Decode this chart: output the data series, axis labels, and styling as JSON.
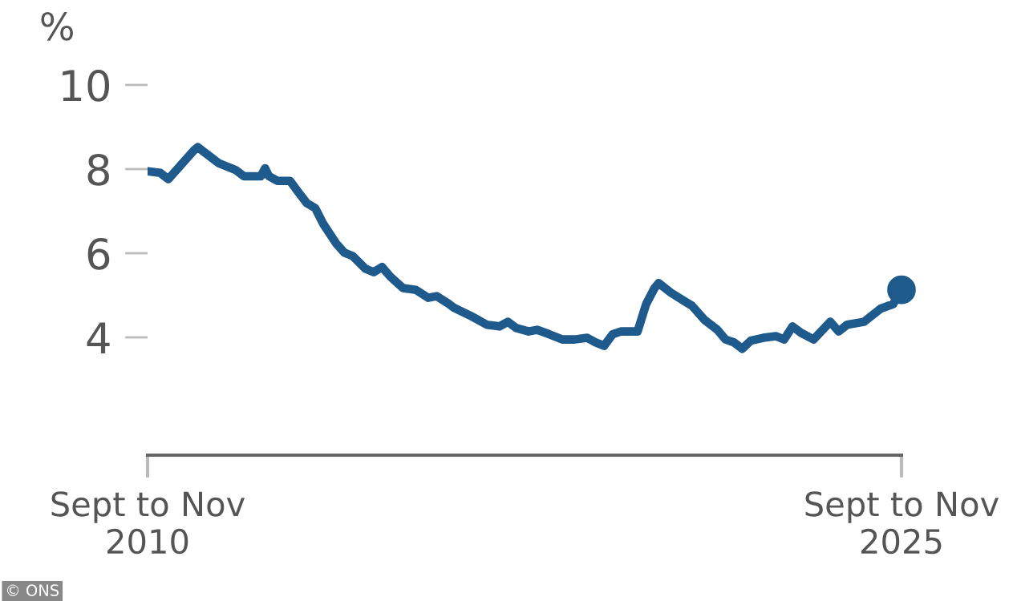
{
  "chart_data": {
    "type": "line",
    "ylabel": "%",
    "annotations": [
      "© ONS"
    ],
    "x": [
      "2010-10",
      "2011-01",
      "2011-03",
      "2011-06",
      "2011-09",
      "2011-10",
      "2012-01",
      "2012-03",
      "2012-07",
      "2012-09",
      "2013-01",
      "2013-02",
      "2013-03",
      "2013-05",
      "2013-08",
      "2013-10",
      "2013-12",
      "2014-02",
      "2014-04",
      "2014-07",
      "2014-09",
      "2014-11",
      "2015-02",
      "2015-04",
      "2015-06",
      "2015-08",
      "2015-11",
      "2016-02",
      "2016-05",
      "2016-07",
      "2016-10",
      "2016-11",
      "2017-03",
      "2017-05",
      "2017-07",
      "2017-10",
      "2017-12",
      "2018-02",
      "2018-05",
      "2018-07",
      "2018-10",
      "2019-01",
      "2019-04",
      "2019-07",
      "2019-09",
      "2019-11",
      "2020-01",
      "2020-03",
      "2020-07",
      "2020-09",
      "2020-11",
      "2020-12",
      "2021-03",
      "2021-06",
      "2021-08",
      "2021-11",
      "2022-02",
      "2022-04",
      "2022-06",
      "2022-08",
      "2022-10",
      "2023-01",
      "2023-04",
      "2023-06",
      "2023-08",
      "2023-10",
      "2024-01",
      "2024-05",
      "2024-07",
      "2024-09",
      "2025-01",
      "2025-05",
      "2025-08",
      "2025-10"
    ],
    "series": [
      {
        "color": "#1f5a8c",
        "values": [
          7.95,
          7.91,
          7.76,
          8.1,
          8.44,
          8.52,
          8.29,
          8.14,
          7.98,
          7.83,
          7.83,
          8.02,
          7.83,
          7.72,
          7.72,
          7.45,
          7.19,
          7.07,
          6.69,
          6.24,
          6.01,
          5.93,
          5.63,
          5.55,
          5.67,
          5.44,
          5.17,
          5.13,
          4.94,
          4.98,
          4.79,
          4.71,
          4.52,
          4.41,
          4.3,
          4.26,
          4.37,
          4.22,
          4.14,
          4.18,
          4.07,
          3.95,
          3.95,
          3.99,
          3.88,
          3.8,
          4.07,
          4.14,
          4.14,
          4.79,
          5.17,
          5.29,
          5.06,
          4.87,
          4.75,
          4.41,
          4.18,
          3.95,
          3.88,
          3.73,
          3.92,
          3.99,
          4.03,
          3.95,
          4.26,
          4.11,
          3.95,
          4.37,
          4.14,
          4.3,
          4.37,
          4.68,
          4.79,
          5.13
        ]
      },
      {
        "type": "scatter",
        "color": "#1f5a8c",
        "x": [
          "2025-10"
        ],
        "values": [
          5.13
        ]
      }
    ],
    "xlim": [
      "2010-10",
      "2025-10"
    ],
    "xticks": [
      {
        "value": "2010-10",
        "label": "Sept to Nov\n2010"
      },
      {
        "value": "2025-10",
        "label": "Sept to Nov\n2025"
      }
    ],
    "ylim": [
      1.2,
      10
    ],
    "yticks": [
      4,
      6,
      8,
      10
    ],
    "grid": false,
    "line_style": "solid"
  }
}
